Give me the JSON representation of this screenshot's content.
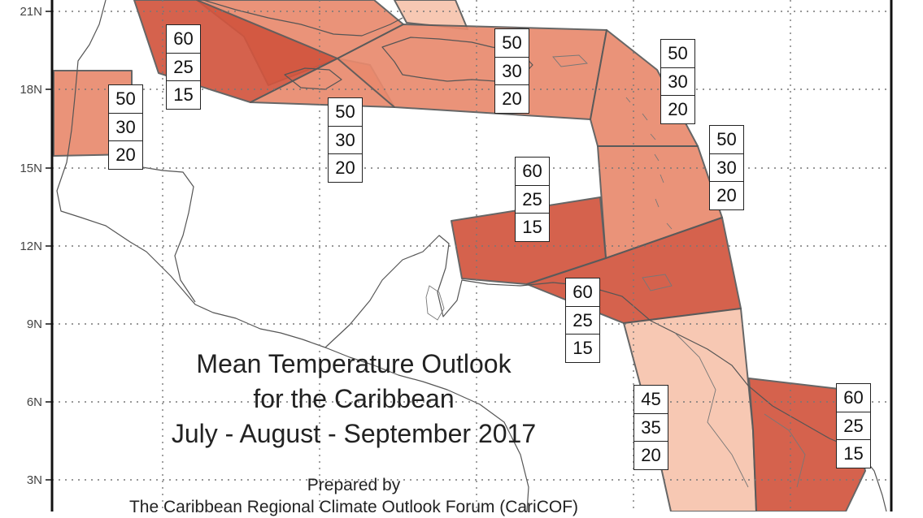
{
  "map": {
    "title_lines": [
      "Mean Temperature Outlook",
      "for the Caribbean",
      "July - August - September 2017"
    ],
    "credit_lines": [
      "Prepared by",
      "The Caribbean Regional Climate Outlook Forum (CariCOF)"
    ],
    "latitude_labels": [
      "21N",
      "18N",
      "15N",
      "12N",
      "9N",
      "6N",
      "3N"
    ],
    "colors": {
      "high_60": "#d2553e",
      "mid_50": "#e98a6e",
      "low_45": "#f7c4ad",
      "background": "#ffffff"
    },
    "probability_boxes": [
      {
        "id": "greater-antilles-west",
        "values": [
          "60",
          "25",
          "15"
        ]
      },
      {
        "id": "belize",
        "values": [
          "50",
          "30",
          "20"
        ]
      },
      {
        "id": "jamaica",
        "values": [
          "50",
          "30",
          "20"
        ]
      },
      {
        "id": "hispaniola-puerto-rico",
        "values": [
          "50",
          "30",
          "20"
        ]
      },
      {
        "id": "northern-lesser-antilles",
        "values": [
          "50",
          "30",
          "20"
        ]
      },
      {
        "id": "windward-islands",
        "values": [
          "50",
          "30",
          "20"
        ]
      },
      {
        "id": "abc-islands",
        "values": [
          "60",
          "25",
          "15"
        ]
      },
      {
        "id": "trinidad-venezuela",
        "values": [
          "60",
          "25",
          "15"
        ]
      },
      {
        "id": "guyana-interior",
        "values": [
          "45",
          "35",
          "20"
        ]
      },
      {
        "id": "suriname",
        "values": [
          "60",
          "25",
          "15"
        ]
      }
    ]
  }
}
